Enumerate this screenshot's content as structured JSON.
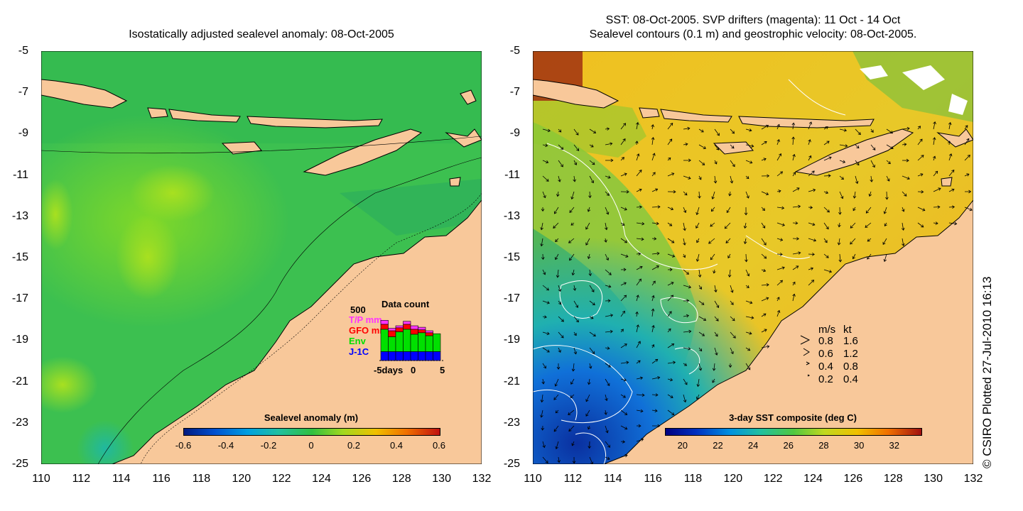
{
  "left_panel": {
    "title": "Isostatically adjusted sealevel anomaly: 08-Oct-2005",
    "colorbar": {
      "title": "Sealevel anomaly (m)",
      "ticks": [
        "-0.6",
        "-0.4",
        "-0.2",
        "0",
        "0.2",
        "0.4",
        "0.6"
      ],
      "range": [
        -0.6,
        0.6
      ]
    },
    "data_count_legend": {
      "title": "Data count",
      "max_label": "500",
      "entries": [
        {
          "label": "T/P mm",
          "color": "#ff33ff"
        },
        {
          "label": "GFO mm",
          "color": "#ff0000"
        },
        {
          "label": "Env",
          "color": "#00e000"
        },
        {
          "label": "J-1C",
          "color": "#0000ff"
        }
      ],
      "xlabels": [
        "-5days",
        "0",
        "5"
      ],
      "bars": [
        {
          "jc": 0.18,
          "env": 0.45,
          "gfo": 0.1,
          "tp": 0.08
        },
        {
          "jc": 0.18,
          "env": 0.3,
          "gfo": 0.12,
          "tp": 0.05
        },
        {
          "jc": 0.18,
          "env": 0.4,
          "gfo": 0.08,
          "tp": 0.04
        },
        {
          "jc": 0.18,
          "env": 0.45,
          "gfo": 0.1,
          "tp": 0.06
        },
        {
          "jc": 0.18,
          "env": 0.35,
          "gfo": 0.1,
          "tp": 0.07
        },
        {
          "jc": 0.18,
          "env": 0.38,
          "gfo": 0.06,
          "tp": 0.05
        },
        {
          "jc": 0.18,
          "env": 0.32,
          "gfo": 0.06,
          "tp": 0.04
        },
        {
          "jc": 0.18,
          "env": 0.36,
          "gfo": 0.0,
          "tp": 0.0
        }
      ]
    }
  },
  "right_panel": {
    "title_line1": "SST: 08-Oct-2005. SVP drifters (magenta): 11 Oct - 14 Oct",
    "title_line2": "Sealevel contours (0.1 m) and geostrophic velocity: 08-Oct-2005.",
    "colorbar": {
      "title": "3-day SST composite (deg C)",
      "ticks": [
        "20",
        "22",
        "24",
        "26",
        "28",
        "30",
        "32"
      ],
      "range": [
        19.0,
        33.5
      ]
    },
    "velocity_legend": {
      "header_ms": "m/s",
      "header_kt": "kt",
      "rows": [
        {
          "ms": "0.8",
          "kt": "1.6"
        },
        {
          "ms": "0.6",
          "kt": "1.2"
        },
        {
          "ms": "0.4",
          "kt": "0.8"
        },
        {
          "ms": "0.2",
          "kt": "0.4"
        }
      ]
    }
  },
  "axes": {
    "y_ticks": [
      "-5",
      "-7",
      "-9",
      "-11",
      "-13",
      "-15",
      "-17",
      "-19",
      "-21",
      "-23",
      "-25"
    ],
    "x_ticks": [
      "110",
      "112",
      "114",
      "116",
      "118",
      "120",
      "122",
      "124",
      "126",
      "128",
      "130",
      "132"
    ],
    "lon_range": [
      110,
      132
    ],
    "lat_range": [
      -5,
      -25
    ]
  },
  "credit": "© CSIRO Plotted 27-Jul-2010 16:13",
  "colors": {
    "land": "#f8c89a",
    "ocean_left": "#26b850",
    "ocean_right_warm": "#f0c020",
    "ocean_right_cool": "#1060d0"
  }
}
